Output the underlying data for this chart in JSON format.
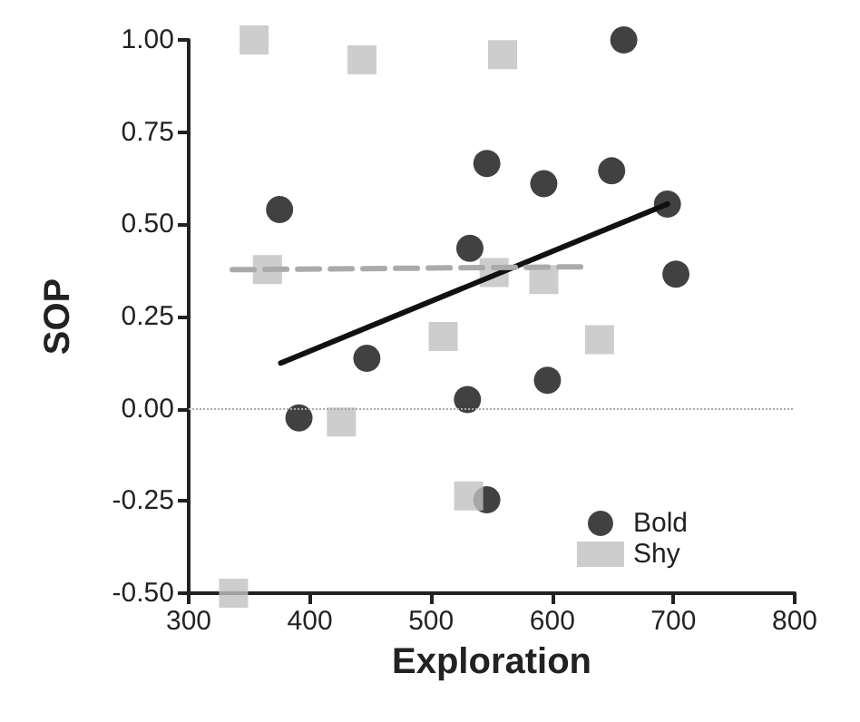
{
  "chart_data": {
    "type": "scatter",
    "xlabel": "Exploration",
    "ylabel": "SOP",
    "xlim": [
      300,
      800
    ],
    "xticks": [
      300,
      400,
      500,
      600,
      700,
      800
    ],
    "ylim": [
      -0.5,
      1.0
    ],
    "yticks": [
      {
        "value": -0.5,
        "label": "-0.50"
      },
      {
        "value": -0.25,
        "label": "-0.25"
      },
      {
        "value": 0,
        "label": "0.00"
      },
      {
        "value": 0.25,
        "label": "0.25"
      },
      {
        "value": 0.5,
        "label": "0.50"
      },
      {
        "value": 0.75,
        "label": "0.75"
      },
      {
        "value": 1.0,
        "label": "1.00"
      }
    ],
    "grid": false,
    "legend": "bottom right",
    "ref_lines": [
      {
        "axis": "y",
        "value": 0,
        "color": "#aaaaaa",
        "line_style": "dotted"
      }
    ],
    "series": [
      {
        "name": "Bold",
        "color": "#111111",
        "marker": "circle",
        "x": [
          375,
          546,
          532,
          593,
          649,
          659,
          695,
          702,
          447,
          391,
          530,
          596,
          546
        ],
        "values": [
          0.54,
          0.665,
          0.435,
          0.61,
          0.645,
          1.0,
          0.555,
          0.365,
          0.137,
          -0.025,
          0.025,
          0.077,
          -0.247
        ]
      },
      {
        "name": "Shy",
        "color": "#c0c0c0",
        "marker": "square",
        "x": [
          354,
          443,
          559,
          365,
          552,
          593,
          510,
          639,
          426,
          531,
          337
        ],
        "values": [
          1.0,
          0.946,
          0.96,
          0.377,
          0.369,
          0.35,
          0.196,
          0.187,
          -0.036,
          -0.236,
          -0.5
        ]
      },
      {
        "type": "line",
        "color": "#111111",
        "line_style": "solid",
        "marker": "none",
        "x": [
          376,
          695
        ],
        "values": [
          0.124,
          0.555
        ]
      },
      {
        "type": "line",
        "color": "#aaaaaa",
        "line_style": "dashed",
        "marker": "none",
        "x": [
          336,
          628
        ],
        "values": [
          0.377,
          0.385
        ]
      }
    ]
  }
}
